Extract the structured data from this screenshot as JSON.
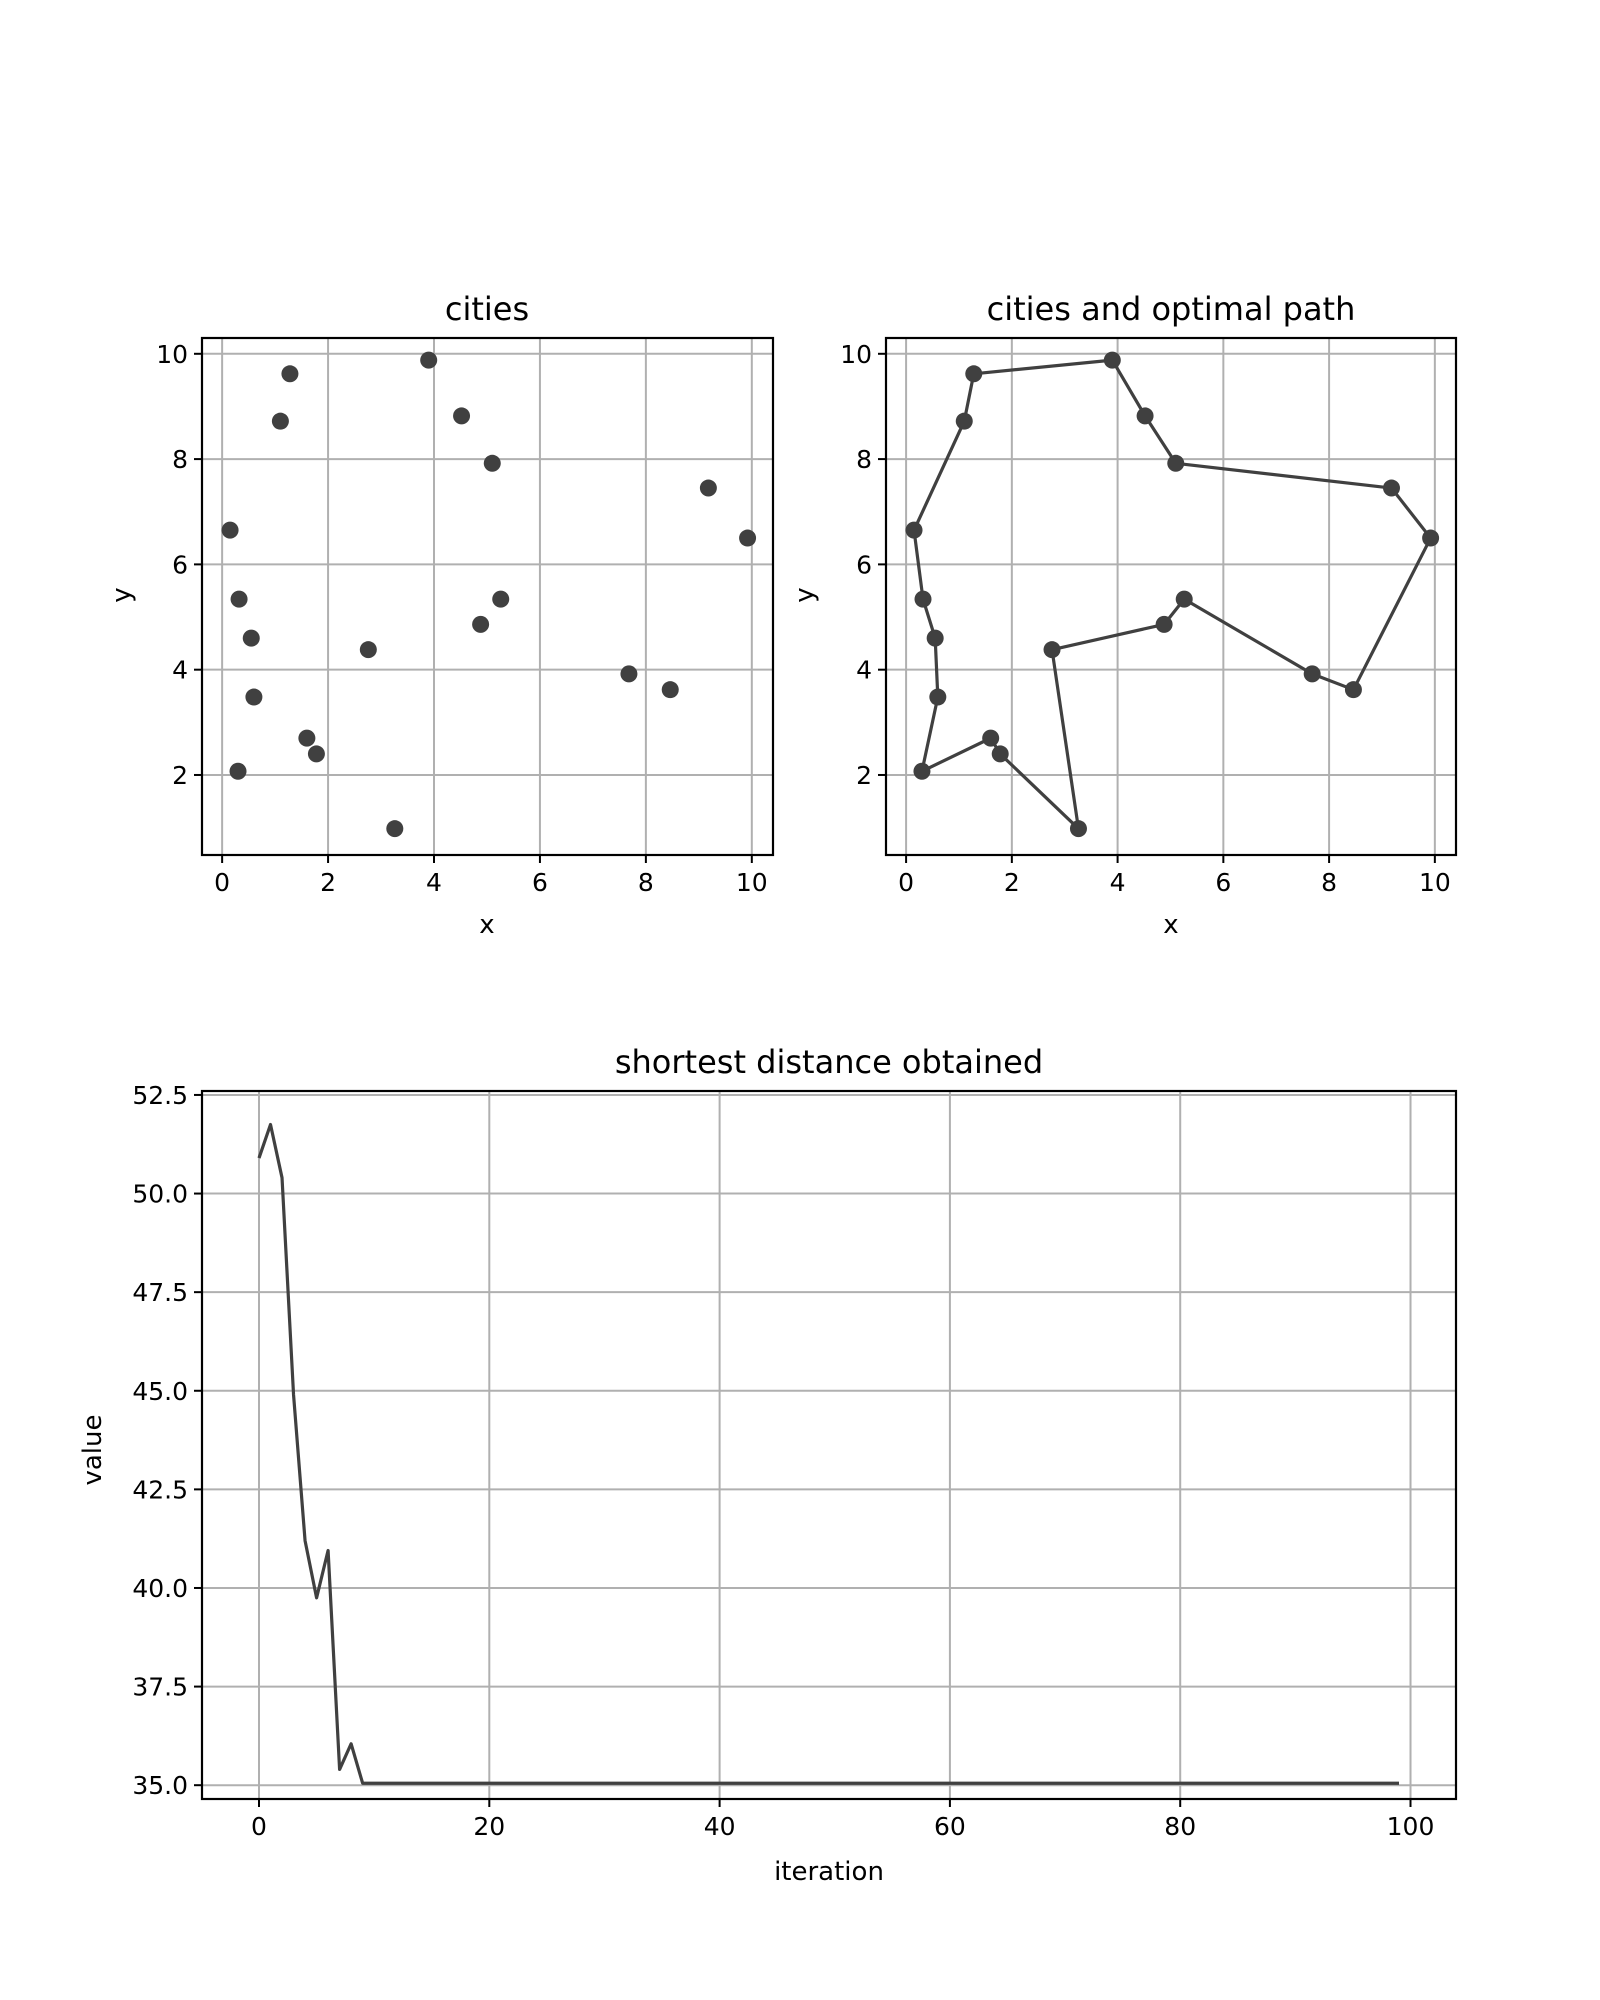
{
  "chart_data": [
    {
      "type": "scatter",
      "title": "cities",
      "xlabel": "x",
      "ylabel": "y",
      "xlim": [
        -0.38,
        10.4
      ],
      "ylim": [
        0.48,
        10.3
      ],
      "xticks": [
        0,
        2,
        4,
        6,
        8,
        10
      ],
      "yticks": [
        2,
        4,
        6,
        8,
        10
      ],
      "grid": true,
      "marker_color": "#404040",
      "points": [
        [
          0.15,
          6.65
        ],
        [
          1.1,
          8.72
        ],
        [
          1.28,
          9.62
        ],
        [
          3.9,
          9.88
        ],
        [
          4.52,
          8.82
        ],
        [
          5.1,
          7.92
        ],
        [
          9.18,
          7.45
        ],
        [
          9.92,
          6.5
        ],
        [
          8.46,
          3.62
        ],
        [
          7.68,
          3.92
        ],
        [
          5.26,
          5.34
        ],
        [
          4.88,
          4.86
        ],
        [
          2.76,
          4.38
        ],
        [
          3.26,
          0.98
        ],
        [
          1.78,
          2.4
        ],
        [
          1.6,
          2.7
        ],
        [
          0.3,
          2.07
        ],
        [
          0.6,
          3.48
        ],
        [
          0.55,
          4.6
        ],
        [
          0.32,
          5.34
        ]
      ]
    },
    {
      "type": "line",
      "title": "cities and optimal path",
      "xlabel": "x",
      "ylabel": "y",
      "xlim": [
        -0.38,
        10.4
      ],
      "ylim": [
        0.48,
        10.3
      ],
      "xticks": [
        0,
        2,
        4,
        6,
        8,
        10
      ],
      "yticks": [
        2,
        4,
        6,
        8,
        10
      ],
      "grid": true,
      "color": "#404040",
      "path": [
        [
          0.15,
          6.65
        ],
        [
          1.1,
          8.72
        ],
        [
          1.28,
          9.62
        ],
        [
          3.9,
          9.88
        ],
        [
          4.52,
          8.82
        ],
        [
          5.1,
          7.92
        ],
        [
          9.18,
          7.45
        ],
        [
          9.92,
          6.5
        ],
        [
          8.46,
          3.62
        ],
        [
          7.68,
          3.92
        ],
        [
          5.26,
          5.34
        ],
        [
          4.88,
          4.86
        ],
        [
          2.76,
          4.38
        ],
        [
          3.26,
          0.98
        ],
        [
          1.78,
          2.4
        ],
        [
          1.6,
          2.7
        ],
        [
          0.3,
          2.07
        ],
        [
          0.6,
          3.48
        ],
        [
          0.55,
          4.6
        ],
        [
          0.32,
          5.34
        ],
        [
          0.15,
          6.65
        ]
      ]
    },
    {
      "type": "line",
      "title": "shortest distance obtained",
      "xlabel": "iteration",
      "ylabel": "value",
      "xlim": [
        -4.95,
        103.95
      ],
      "ylim": [
        34.65,
        52.6
      ],
      "xticks": [
        0,
        20,
        40,
        60,
        80,
        100
      ],
      "yticks": [
        35.0,
        37.5,
        40.0,
        42.5,
        45.0,
        47.5,
        50.0,
        52.5
      ],
      "ytick_labels": [
        "35.0",
        "37.5",
        "40.0",
        "42.5",
        "45.0",
        "47.5",
        "50.0",
        "52.5"
      ],
      "grid": true,
      "color": "#404040",
      "x": [
        0,
        1,
        2,
        3,
        4,
        5,
        6,
        7,
        8,
        9,
        99
      ],
      "y": [
        50.9,
        51.75,
        50.4,
        44.9,
        41.2,
        39.75,
        40.95,
        35.4,
        36.05,
        35.05,
        35.05
      ]
    }
  ]
}
